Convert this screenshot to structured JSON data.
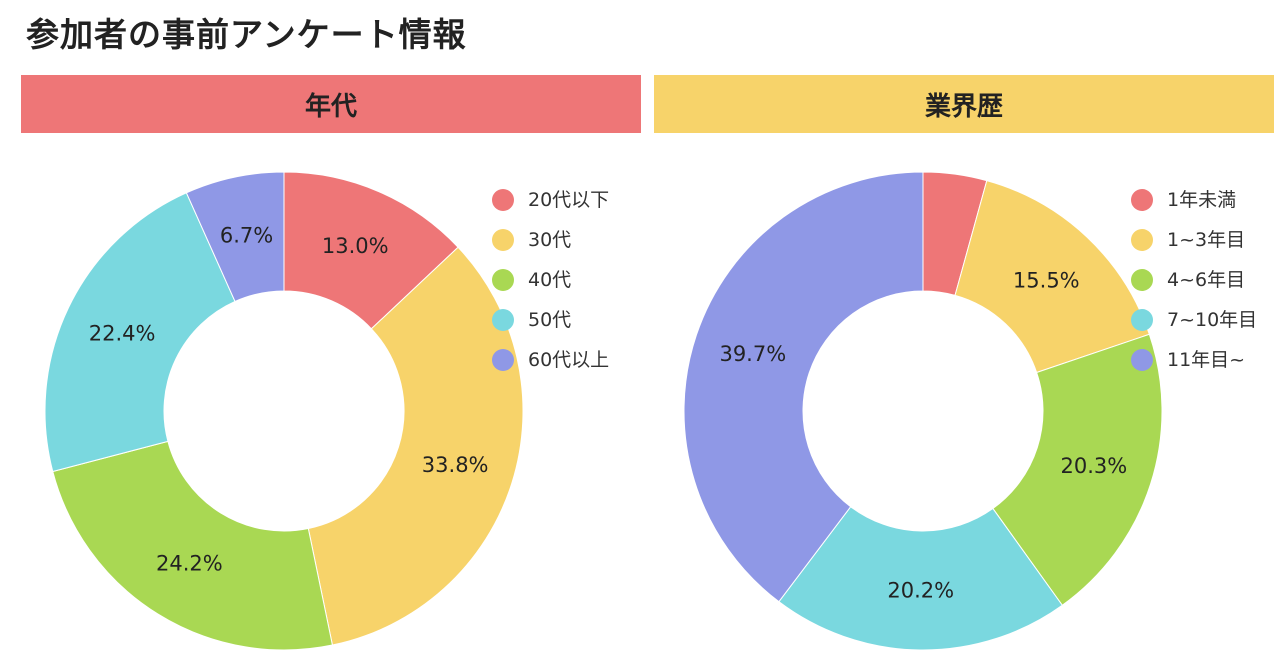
{
  "page": {
    "title": "参加者の事前アンケート情報"
  },
  "chart_data": [
    {
      "type": "pie",
      "title": "年代",
      "header_color": "#ee7677",
      "categories": [
        "20代以下",
        "30代",
        "40代",
        "50代",
        "60代以上"
      ],
      "values": [
        13.0,
        33.8,
        24.2,
        22.4,
        6.7
      ],
      "labels": [
        "13.0%",
        "33.8%",
        "24.2%",
        "22.4%",
        "6.7%"
      ],
      "colors": [
        "#ee7677",
        "#f7d36a",
        "#a9d853",
        "#7ad8df",
        "#8f98e6"
      ],
      "donut": true,
      "legend_position": "top-right"
    },
    {
      "type": "pie",
      "title": "業界歴",
      "header_color": "#f7d36a",
      "categories": [
        "1年未満",
        "1~3年目",
        "4~6年目",
        "7~10年目",
        "11年目~"
      ],
      "values": [
        4.3,
        15.5,
        20.3,
        20.2,
        39.7
      ],
      "labels": [
        "",
        "15.5%",
        "20.3%",
        "20.2%",
        "39.7%"
      ],
      "colors": [
        "#ee7677",
        "#f7d36a",
        "#a9d853",
        "#7ad8df",
        "#8f98e6"
      ],
      "donut": true,
      "legend_position": "top-right"
    }
  ]
}
